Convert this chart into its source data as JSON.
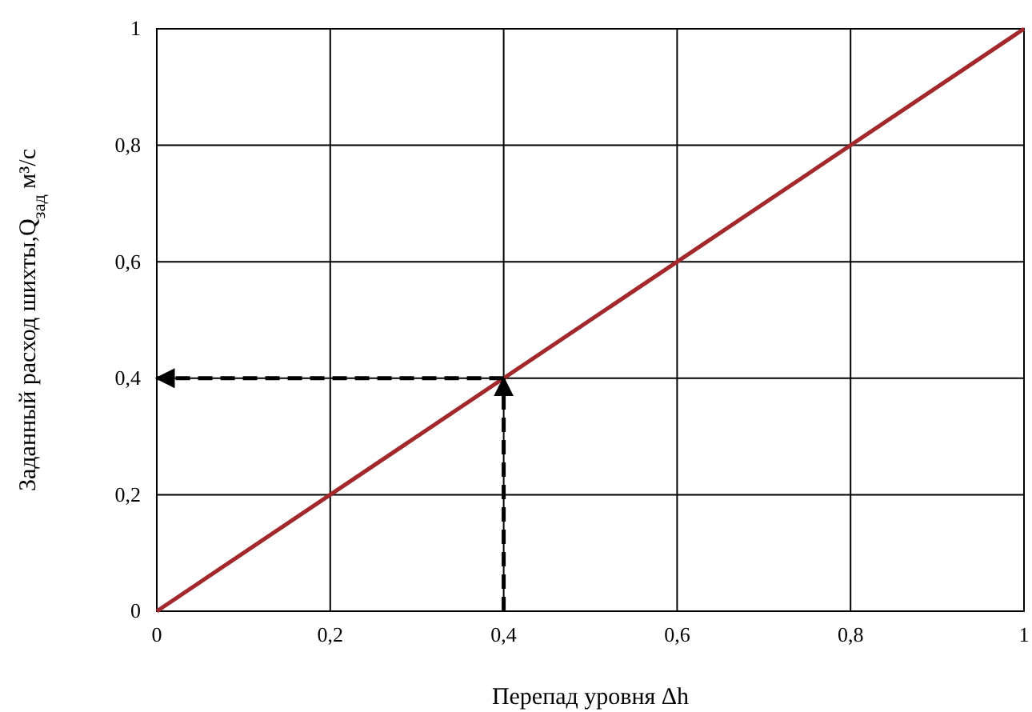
{
  "chart_data": {
    "type": "line",
    "xlabel": "Перепад уровня  Δh",
    "ylabel": "Заданный расход шихты,Q$_{зад}$ м³/с",
    "xlim": [
      0,
      1
    ],
    "ylim": [
      0,
      1
    ],
    "xticks": [
      0,
      {
        "value": 0.2,
        "label": "0,2"
      },
      {
        "value": 0.4,
        "label": "0,4"
      },
      {
        "value": 0.6,
        "label": "0,6"
      },
      {
        "value": 0.8,
        "label": "0,8"
      },
      1
    ],
    "yticks": [
      0,
      {
        "value": 0.2,
        "label": "0,2"
      },
      {
        "value": 0.4,
        "label": "0,4"
      },
      {
        "value": 0.6,
        "label": "0,6"
      },
      {
        "value": 0.8,
        "label": "0,8"
      },
      1
    ],
    "grid": true,
    "series": [
      {
        "color": "#a3282c",
        "x": [
          0,
          1
        ],
        "values": [
          0,
          1
        ]
      },
      {
        "color": "#000000",
        "x": [
          0.4,
          0.4
        ],
        "values": [
          0,
          0.4
        ],
        "line_style": "dashed"
      },
      {
        "color": "#000000",
        "x": [
          0.4,
          0
        ],
        "values": [
          0.4,
          0.4
        ],
        "line_style": "dashed"
      }
    ]
  }
}
